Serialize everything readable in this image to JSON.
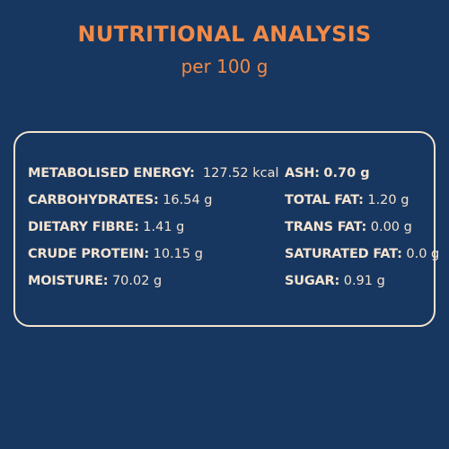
{
  "header": {
    "title": "NUTRITIONAL ANALYSIS",
    "subtitle": "per 100 g"
  },
  "nutrition": {
    "left": [
      {
        "label": "METABOLISED ENERGY:",
        "value": "127.52 kcal"
      },
      {
        "label": "CARBOHYDRATES:",
        "value": "16.54 g"
      },
      {
        "label": "DIETARY FIBRE:",
        "value": "1.41 g"
      },
      {
        "label": "CRUDE PROTEIN:",
        "value": "10.15 g"
      },
      {
        "label": "MOISTURE:",
        "value": "70.02 g"
      }
    ],
    "right": [
      {
        "label": "ASH:",
        "value": "0.70 g"
      },
      {
        "label": "TOTAL FAT:",
        "value": "1.20 g"
      },
      {
        "label": "TRANS FAT:",
        "value": "0.00 g"
      },
      {
        "label": "SATURATED FAT:",
        "value": "0.0 g"
      },
      {
        "label": "SUGAR:",
        "value": "0.91 g"
      }
    ]
  },
  "colors": {
    "background": "#173760",
    "accent": "#f18a48",
    "text": "#f5e3d0"
  }
}
